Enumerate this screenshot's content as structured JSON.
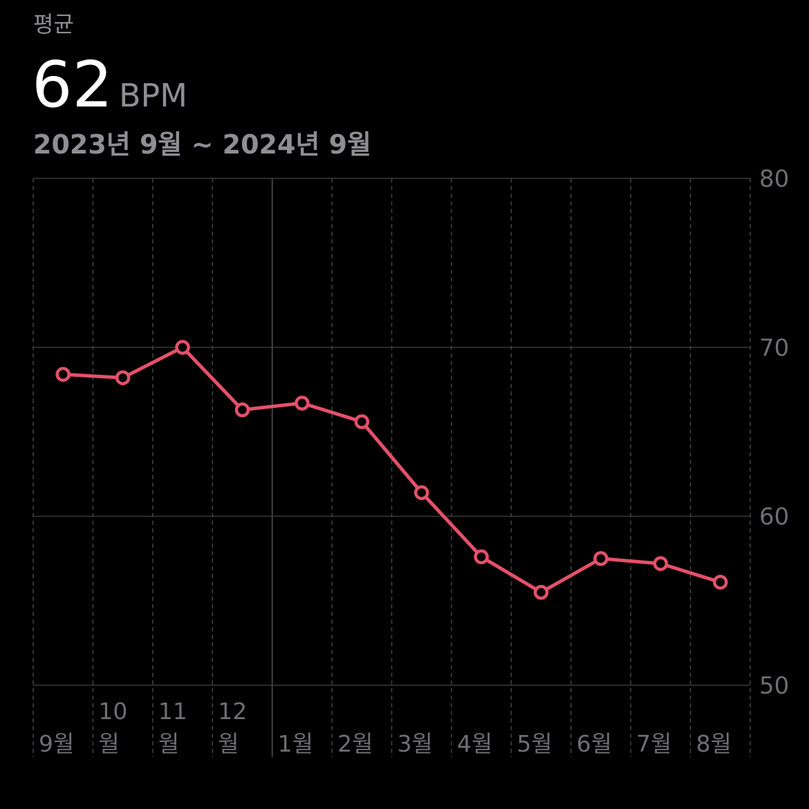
{
  "chart_data": {
    "type": "line",
    "title": "평균",
    "headline": {
      "value": 62,
      "unit": "BPM"
    },
    "subtitle": "2023년 9월 ~ 2024년 9월",
    "categories": [
      "9월",
      "10월",
      "11월",
      "12월",
      "1월",
      "2월",
      "3월",
      "4월",
      "5월",
      "6월",
      "7월",
      "8월"
    ],
    "series": [
      {
        "name": "BPM",
        "color": "#e5506a",
        "values": [
          68.4,
          68.2,
          70.0,
          66.3,
          66.7,
          65.6,
          61.4,
          57.6,
          55.5,
          57.5,
          57.2,
          56.1
        ]
      }
    ],
    "ylim": [
      50,
      80
    ],
    "yticks": [
      50,
      60,
      70,
      80
    ],
    "grid": true,
    "y_axis_side": "right"
  }
}
